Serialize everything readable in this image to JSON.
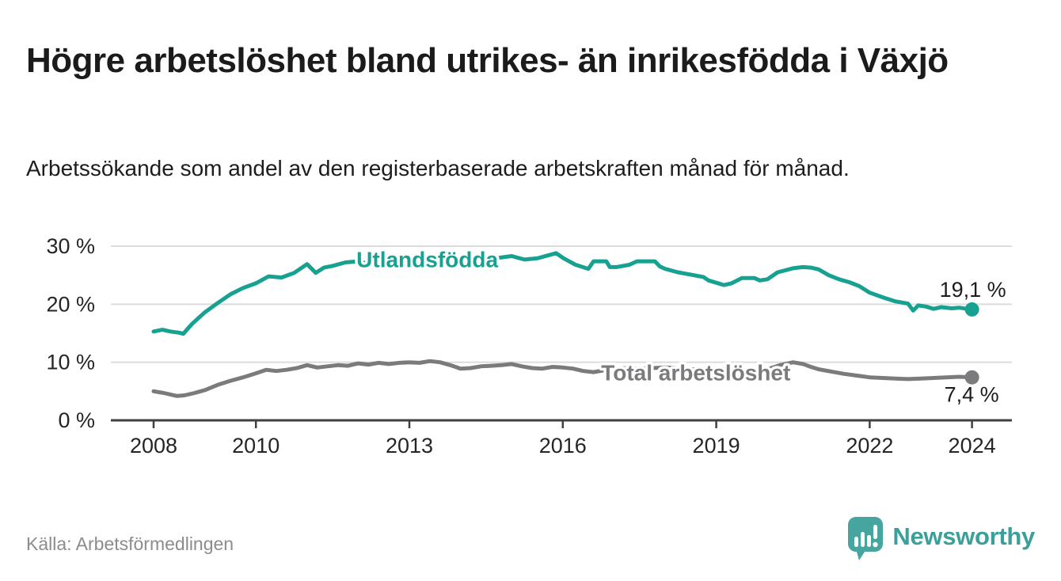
{
  "header": {
    "title": "Högre arbetslöshet bland utrikes- än inrikesfödda i Växjö",
    "subtitle": "Arbetssökande som andel av den registerbaserade arbetskraften månad för månad."
  },
  "footer": {
    "source": "Källa: Arbetsförmedlingen",
    "brand_name": "Newsworthy",
    "brand_icon": "speech-bubble-bar-chart-icon"
  },
  "colors": {
    "foreign_line": "#16a190",
    "total_line": "#7b7b7e",
    "grid": "#dcdcdc",
    "axis": "#404040",
    "tick_text": "#252525",
    "value_text": "#1d1d1d",
    "muted_text": "#8c8c8c",
    "brand_icon": "#46a59e",
    "brand_text": "#3aa099",
    "halo": "#ffffff"
  },
  "chart_data": {
    "type": "line",
    "title": "Högre arbetslöshet bland utrikes- än inrikesfödda i Växjö",
    "xlabel": "",
    "ylabel": "",
    "grid": "horizontal",
    "legend_position": "inline-labels",
    "xlim": [
      2007.2,
      2024.77
    ],
    "ylim": [
      0,
      31.5
    ],
    "x_ticks": [
      {
        "label": "2008",
        "year": 2008
      },
      {
        "label": "2010",
        "year": 2010
      },
      {
        "label": "2013",
        "year": 2013
      },
      {
        "label": "2016",
        "year": 2016
      },
      {
        "label": "2019",
        "year": 2019
      },
      {
        "label": "2022",
        "year": 2022
      },
      {
        "label": "2024",
        "year": 2024
      }
    ],
    "y_ticks": [
      {
        "label": "0 %",
        "value": 0
      },
      {
        "label": "10 %",
        "value": 10
      },
      {
        "label": "20 %",
        "value": 20
      },
      {
        "label": "30 %",
        "value": 30
      }
    ],
    "series": [
      {
        "name": "Utlandsfödda",
        "color": "#16a190",
        "end_label": "19,1 %",
        "end_value": 19.1,
        "label_pos": {
          "year": 2013.35,
          "value": 27.7
        },
        "points": [
          [
            2008.0,
            15.3
          ],
          [
            2008.17,
            15.6
          ],
          [
            2008.33,
            15.3
          ],
          [
            2008.5,
            15.1
          ],
          [
            2008.58,
            14.9
          ],
          [
            2008.75,
            16.6
          ],
          [
            2009.0,
            18.6
          ],
          [
            2009.25,
            20.2
          ],
          [
            2009.5,
            21.7
          ],
          [
            2009.75,
            22.8
          ],
          [
            2010.0,
            23.6
          ],
          [
            2010.25,
            24.8
          ],
          [
            2010.5,
            24.6
          ],
          [
            2010.75,
            25.4
          ],
          [
            2011.0,
            26.9
          ],
          [
            2011.17,
            25.4
          ],
          [
            2011.33,
            26.3
          ],
          [
            2011.5,
            26.6
          ],
          [
            2011.75,
            27.2
          ],
          [
            2012.0,
            27.4
          ],
          [
            2012.25,
            26.9
          ],
          [
            2012.5,
            27.2
          ],
          [
            2012.75,
            27.4
          ],
          [
            2013.0,
            27.1
          ],
          [
            2013.25,
            27.3
          ],
          [
            2013.5,
            27.4
          ],
          [
            2013.75,
            27.3
          ],
          [
            2014.0,
            27.2
          ],
          [
            2014.25,
            27.4
          ],
          [
            2014.5,
            27.7
          ],
          [
            2014.75,
            28.0
          ],
          [
            2015.0,
            28.3
          ],
          [
            2015.25,
            27.7
          ],
          [
            2015.5,
            27.9
          ],
          [
            2015.87,
            28.8
          ],
          [
            2016.0,
            28.0
          ],
          [
            2016.1,
            27.5
          ],
          [
            2016.25,
            26.8
          ],
          [
            2016.5,
            26.1
          ],
          [
            2016.6,
            27.4
          ],
          [
            2016.85,
            27.4
          ],
          [
            2016.92,
            26.4
          ],
          [
            2017.05,
            26.4
          ],
          [
            2017.3,
            26.8
          ],
          [
            2017.45,
            27.4
          ],
          [
            2017.8,
            27.4
          ],
          [
            2017.9,
            26.5
          ],
          [
            2018.0,
            26.1
          ],
          [
            2018.25,
            25.5
          ],
          [
            2018.5,
            25.1
          ],
          [
            2018.75,
            24.7
          ],
          [
            2018.85,
            24.1
          ],
          [
            2019.0,
            23.7
          ],
          [
            2019.15,
            23.3
          ],
          [
            2019.3,
            23.6
          ],
          [
            2019.5,
            24.5
          ],
          [
            2019.75,
            24.5
          ],
          [
            2019.85,
            24.1
          ],
          [
            2020.0,
            24.3
          ],
          [
            2020.2,
            25.5
          ],
          [
            2020.5,
            26.2
          ],
          [
            2020.7,
            26.4
          ],
          [
            2020.85,
            26.3
          ],
          [
            2021.0,
            26.0
          ],
          [
            2021.2,
            25.0
          ],
          [
            2021.4,
            24.3
          ],
          [
            2021.6,
            23.8
          ],
          [
            2021.8,
            23.1
          ],
          [
            2022.0,
            22.0
          ],
          [
            2022.25,
            21.2
          ],
          [
            2022.5,
            20.5
          ],
          [
            2022.75,
            20.1
          ],
          [
            2022.85,
            18.9
          ],
          [
            2022.95,
            19.8
          ],
          [
            2023.1,
            19.6
          ],
          [
            2023.25,
            19.2
          ],
          [
            2023.4,
            19.5
          ],
          [
            2023.6,
            19.3
          ],
          [
            2023.75,
            19.4
          ],
          [
            2023.9,
            19.2
          ],
          [
            2024.0,
            19.1
          ]
        ]
      },
      {
        "name": "Total arbetslöshet",
        "color": "#7b7b7e",
        "end_label": "7,4 %",
        "end_value": 7.4,
        "label_pos": {
          "year": 2018.6,
          "value": 8.2
        },
        "points": [
          [
            2008.0,
            5.0
          ],
          [
            2008.2,
            4.7
          ],
          [
            2008.45,
            4.2
          ],
          [
            2008.6,
            4.3
          ],
          [
            2008.8,
            4.7
          ],
          [
            2009.0,
            5.2
          ],
          [
            2009.25,
            6.1
          ],
          [
            2009.5,
            6.8
          ],
          [
            2009.75,
            7.4
          ],
          [
            2010.0,
            8.1
          ],
          [
            2010.2,
            8.7
          ],
          [
            2010.4,
            8.5
          ],
          [
            2010.6,
            8.7
          ],
          [
            2010.8,
            9.0
          ],
          [
            2011.0,
            9.5
          ],
          [
            2011.2,
            9.1
          ],
          [
            2011.4,
            9.3
          ],
          [
            2011.6,
            9.5
          ],
          [
            2011.8,
            9.4
          ],
          [
            2012.0,
            9.8
          ],
          [
            2012.2,
            9.6
          ],
          [
            2012.4,
            9.9
          ],
          [
            2012.6,
            9.7
          ],
          [
            2012.8,
            9.9
          ],
          [
            2013.0,
            10.0
          ],
          [
            2013.2,
            9.9
          ],
          [
            2013.4,
            10.2
          ],
          [
            2013.6,
            10.0
          ],
          [
            2013.8,
            9.5
          ],
          [
            2014.0,
            8.9
          ],
          [
            2014.2,
            9.0
          ],
          [
            2014.4,
            9.3
          ],
          [
            2014.6,
            9.4
          ],
          [
            2014.8,
            9.5
          ],
          [
            2015.0,
            9.7
          ],
          [
            2015.2,
            9.3
          ],
          [
            2015.4,
            9.0
          ],
          [
            2015.6,
            8.9
          ],
          [
            2015.8,
            9.2
          ],
          [
            2016.0,
            9.1
          ],
          [
            2016.2,
            8.9
          ],
          [
            2016.4,
            8.5
          ],
          [
            2016.6,
            8.3
          ],
          [
            2016.8,
            8.6
          ],
          [
            2017.0,
            8.9
          ],
          [
            2017.25,
            9.0
          ],
          [
            2017.5,
            8.9
          ],
          [
            2017.75,
            9.0
          ],
          [
            2018.0,
            9.1
          ],
          [
            2018.25,
            9.0
          ],
          [
            2018.5,
            8.8
          ],
          [
            2018.75,
            8.7
          ],
          [
            2019.0,
            8.6
          ],
          [
            2019.25,
            8.5
          ],
          [
            2019.5,
            8.6
          ],
          [
            2019.75,
            8.7
          ],
          [
            2020.0,
            8.8
          ],
          [
            2020.25,
            9.5
          ],
          [
            2020.5,
            10.0
          ],
          [
            2020.7,
            9.7
          ],
          [
            2020.85,
            9.2
          ],
          [
            2021.0,
            8.8
          ],
          [
            2021.25,
            8.4
          ],
          [
            2021.5,
            8.0
          ],
          [
            2021.75,
            7.7
          ],
          [
            2022.0,
            7.4
          ],
          [
            2022.25,
            7.3
          ],
          [
            2022.5,
            7.2
          ],
          [
            2022.75,
            7.1
          ],
          [
            2023.0,
            7.2
          ],
          [
            2023.25,
            7.3
          ],
          [
            2023.5,
            7.4
          ],
          [
            2023.75,
            7.5
          ],
          [
            2024.0,
            7.4
          ]
        ]
      }
    ]
  }
}
